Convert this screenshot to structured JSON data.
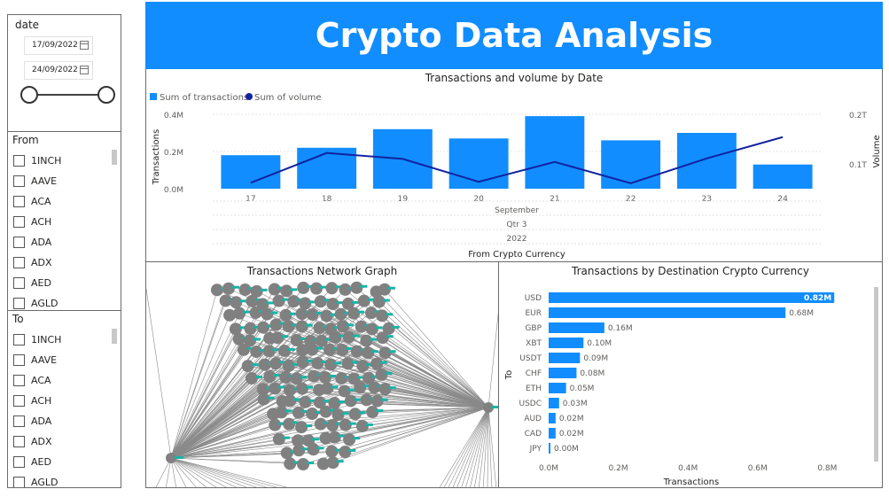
{
  "date_slicer": {
    "label": "date",
    "start": "17/09/2022",
    "end": "24/09/2022"
  },
  "from_slicer": {
    "label": "From",
    "items": [
      "1INCH",
      "AAVE",
      "ACA",
      "ACH",
      "ADA",
      "ADX",
      "AED",
      "AGLD"
    ]
  },
  "to_slicer": {
    "label": "To",
    "items": [
      "1INCH",
      "AAVE",
      "ACA",
      "ACH",
      "ADA",
      "ADX",
      "AED",
      "AGLD"
    ]
  },
  "header": {
    "title": "Crypto Data Analysis"
  },
  "colors": {
    "accent": "#118dff",
    "line": "#12239e",
    "node": "#808080",
    "node_label": "#1ab3a6"
  },
  "combo_chart": {
    "title": "Transactions and volume by Date",
    "legend": [
      "Sum of transactions",
      "Sum of volume"
    ],
    "y_left_label": "Transactions",
    "y_right_label": "Volume",
    "y_left_ticks": [
      "0.4M",
      "0.2M",
      "0.0M"
    ],
    "y_right_ticks": [
      "0.2T",
      "0.1T"
    ],
    "x_hierarchy": [
      "September",
      "Qtr 3",
      "2022"
    ],
    "x_title": "From Crypto Currency"
  },
  "network": {
    "title": "Transactions Network Graph"
  },
  "bar_chart": {
    "title": "Transactions by Destination Crypto Currency",
    "y_label": "To",
    "x_label": "Transactions",
    "x_ticks": [
      "0.0M",
      "0.2M",
      "0.4M",
      "0.6M",
      "0.8M"
    ],
    "value_labels": [
      "0.82M",
      "0.68M",
      "0.16M",
      "0.10M",
      "0.09M",
      "0.08M",
      "0.05M",
      "0.03M",
      "0.02M",
      "0.02M",
      "0.00M"
    ]
  },
  "chart_data": [
    {
      "type": "bar",
      "title": "Transactions and volume by Date",
      "categories": [
        "17",
        "18",
        "19",
        "20",
        "21",
        "22",
        "23",
        "24"
      ],
      "series": [
        {
          "name": "Sum of transactions",
          "type": "bar",
          "axis": "left",
          "values": [
            0.18,
            0.22,
            0.32,
            0.27,
            0.39,
            0.26,
            0.3,
            0.13
          ]
        },
        {
          "name": "Sum of volume",
          "type": "line",
          "axis": "right",
          "values": [
            0.012,
            0.072,
            0.06,
            0.014,
            0.054,
            0.011,
            0.061,
            0.104
          ]
        }
      ],
      "xlabel": "From Crypto Currency",
      "ylabel": "Transactions",
      "ylim": [
        0,
        0.4
      ],
      "y2label": "Volume",
      "y2lim": [
        0,
        0.15
      ]
    },
    {
      "type": "bar",
      "orientation": "horizontal",
      "title": "Transactions by Destination Crypto Currency",
      "categories": [
        "USD",
        "EUR",
        "GBP",
        "XBT",
        "USDT",
        "CHF",
        "ETH",
        "USDC",
        "AUD",
        "CAD",
        "JPY"
      ],
      "values": [
        0.82,
        0.68,
        0.16,
        0.1,
        0.09,
        0.08,
        0.05,
        0.03,
        0.02,
        0.02,
        0.0
      ],
      "xlabel": "Transactions",
      "ylabel": "To",
      "xlim": [
        0,
        0.85
      ]
    }
  ]
}
